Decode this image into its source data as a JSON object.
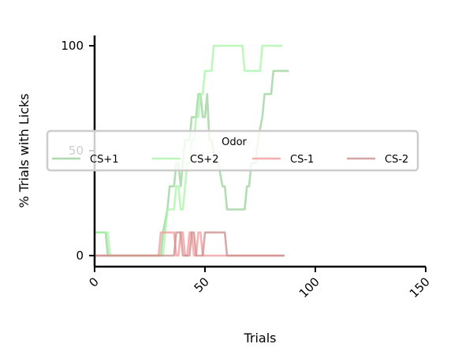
{
  "chart_data": {
    "type": "line",
    "xlabel": "Trials",
    "ylabel": "% Trials with Licks",
    "xlim": [
      0,
      150
    ],
    "ylim": [
      -5,
      105
    ],
    "xticks": [
      0,
      50,
      100,
      150
    ],
    "yticks": [
      0,
      50,
      100
    ],
    "grid": false,
    "legend": {
      "title": "Odor",
      "placement": "center"
    },
    "series": [
      {
        "name": "CS+1",
        "color": "#98d098",
        "x": [
          0,
          5,
          6,
          30,
          31,
          33,
          34,
          36,
          37,
          38,
          39,
          40,
          41,
          43,
          44,
          46,
          47,
          48,
          49,
          50,
          51,
          52,
          53,
          55,
          56,
          58,
          59,
          60,
          61,
          68,
          69,
          70,
          71,
          73,
          74,
          76,
          77,
          80,
          81,
          88
        ],
        "y": [
          11,
          11,
          0,
          0,
          11,
          22,
          33,
          33,
          44,
          44,
          33,
          44,
          55,
          55,
          66,
          66,
          77,
          77,
          66,
          66,
          77,
          55,
          55,
          44,
          44,
          33,
          33,
          22,
          22,
          22,
          33,
          33,
          44,
          44,
          55,
          66,
          77,
          77,
          88,
          88
        ]
      },
      {
        "name": "CS+2",
        "color": "#a6f5a6",
        "x": [
          0,
          6,
          7,
          30,
          31,
          32,
          33,
          36,
          37,
          38,
          39,
          40,
          41,
          42,
          43,
          44,
          45,
          46,
          47,
          48,
          49,
          50,
          51,
          53,
          54,
          56,
          57,
          67,
          68,
          75,
          76,
          85
        ],
        "y": [
          11,
          11,
          0,
          0,
          0,
          11,
          22,
          22,
          33,
          33,
          22,
          22,
          33,
          44,
          44,
          55,
          55,
          66,
          66,
          77,
          77,
          88,
          88,
          88,
          100,
          100,
          100,
          100,
          88,
          88,
          100,
          100
        ]
      },
      {
        "name": "CS-1",
        "color": "#f49a9a",
        "x": [
          0,
          3,
          4,
          29,
          30,
          36,
          37,
          38,
          39,
          40,
          41,
          42,
          43,
          44,
          45,
          46,
          47,
          48,
          49,
          50,
          51,
          86
        ],
        "y": [
          0,
          0,
          0,
          0,
          11,
          11,
          0,
          0,
          11,
          11,
          0,
          0,
          11,
          11,
          0,
          0,
          11,
          11,
          0,
          0,
          0,
          0
        ]
      },
      {
        "name": "CS-2",
        "color": "#cc8c8c",
        "x": [
          0,
          28,
          29,
          36,
          37,
          38,
          39,
          40,
          41,
          42,
          43,
          44,
          45,
          46,
          47,
          48,
          49,
          50,
          51,
          52,
          53,
          59,
          60,
          86
        ],
        "y": [
          0,
          0,
          0,
          0,
          11,
          11,
          11,
          0,
          0,
          0,
          0,
          11,
          11,
          0,
          0,
          0,
          0,
          11,
          11,
          11,
          11,
          11,
          0,
          0
        ]
      }
    ]
  }
}
